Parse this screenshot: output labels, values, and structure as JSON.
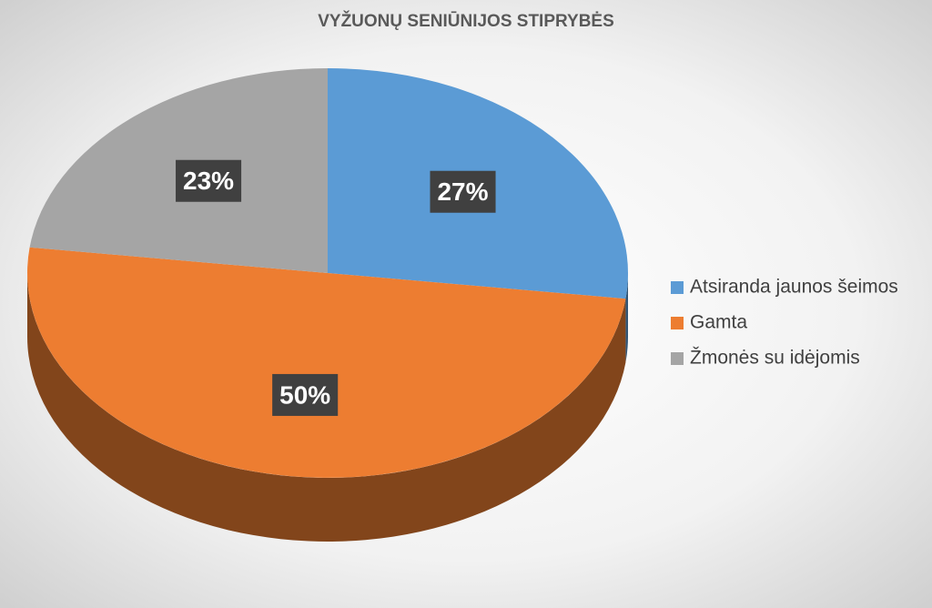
{
  "chart_data": {
    "type": "pie",
    "title": "VYŽUONŲ SENIŪNIJOS STIPRYBĖS",
    "categories": [
      "Atsiranda jaunos šeimos",
      "Gamta",
      "Žmonės su idėjomis"
    ],
    "values": [
      27,
      50,
      23
    ],
    "value_labels": [
      "27%",
      "50%",
      "23%"
    ],
    "colors": [
      "#5b9bd5",
      "#ed7d31",
      "#a5a5a5"
    ],
    "legend": "right"
  }
}
